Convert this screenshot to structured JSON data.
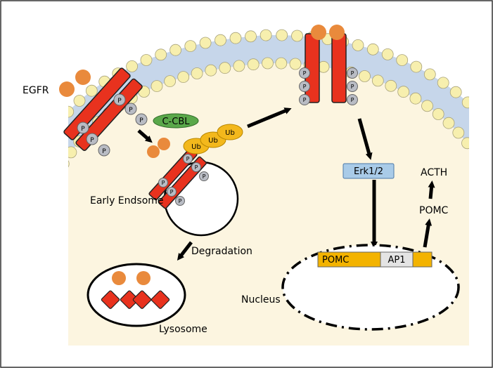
{
  "labels": {
    "egfr": "EGFR",
    "ccbl": "C-CBL",
    "ub": "Ub",
    "p": "P",
    "erk": "Erk1/2",
    "acth": "ACTH",
    "pomc_arrow": "POMC",
    "early_endosome": "Early Endsome",
    "degradation": "Degradation",
    "nucleus": "Nucleus",
    "lysosome": "Lysosome",
    "gene_pomc": "POMC",
    "gene_ap1": "AP1"
  },
  "colors": {
    "receptor": "#e8321e",
    "ligand": "#e98a3c",
    "phosphate": "#b9bcc4",
    "lipid_head": "#f7efae",
    "membrane_tail": "#c6d6ea",
    "cytoplasm": "#fcf5e0",
    "ccbl": "#5aa84a",
    "ubiquitin": "#f3b81c",
    "erk": "#a9cbe8",
    "gene": "#f3b300",
    "ap1": "#e4e4e4"
  }
}
